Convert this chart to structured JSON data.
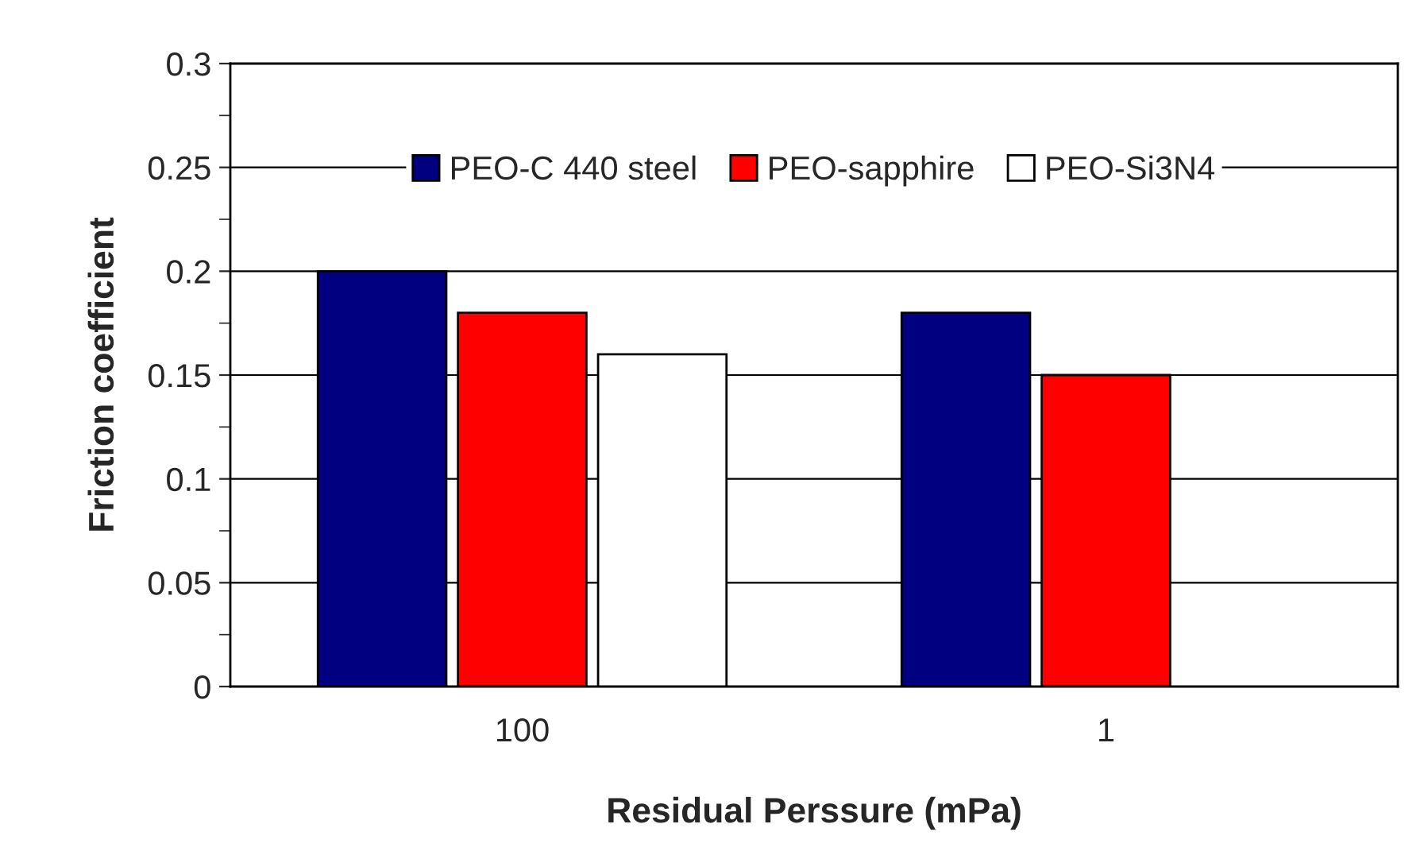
{
  "chart_data": {
    "type": "bar",
    "xlabel": "Residual Perssure (mPa)",
    "ylabel": "Friction coefficient",
    "categories": [
      "100",
      "1"
    ],
    "series": [
      {
        "name": "PEO-C 440 steel",
        "color": "#000080",
        "values": [
          0.2,
          0.18
        ]
      },
      {
        "name": "PEO-sapphire",
        "color": "#ff0000",
        "values": [
          0.18,
          0.15
        ]
      },
      {
        "name": "PEO-Si3N4",
        "color": "#ffffff",
        "values": [
          0.16,
          null
        ]
      }
    ],
    "ylim": [
      0,
      0.3
    ],
    "yticks": [
      0,
      {
        "value": 0.025,
        "label": null
      },
      0.05,
      {
        "value": 0.075,
        "label": null
      },
      0.1,
      {
        "value": 0.125,
        "label": null
      },
      0.15,
      {
        "value": 0.175,
        "label": null
      },
      0.2,
      {
        "value": 0.225,
        "label": null
      },
      0.25,
      {
        "value": 0.275,
        "label": null
      },
      0.3
    ],
    "grid": "y",
    "legend": "top"
  }
}
